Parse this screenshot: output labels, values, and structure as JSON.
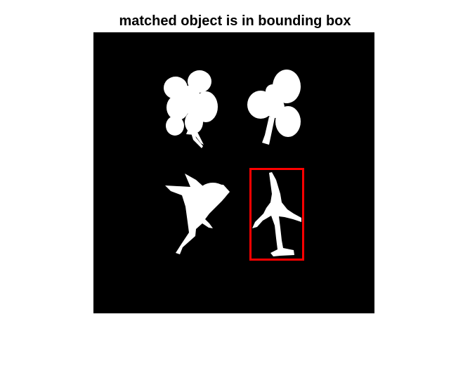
{
  "figure": {
    "title": "matched object is in bounding box"
  },
  "image": {
    "background_color": "#000000",
    "object_color": "#ffffff",
    "objects": [
      {
        "name": "clover-leaf-1",
        "matched": false
      },
      {
        "name": "club-shape",
        "matched": false
      },
      {
        "name": "bird-shape",
        "matched": false
      },
      {
        "name": "airplane-shape",
        "matched": true
      }
    ]
  },
  "bounding_box": {
    "color": "#ff0000",
    "target": "airplane-shape"
  }
}
